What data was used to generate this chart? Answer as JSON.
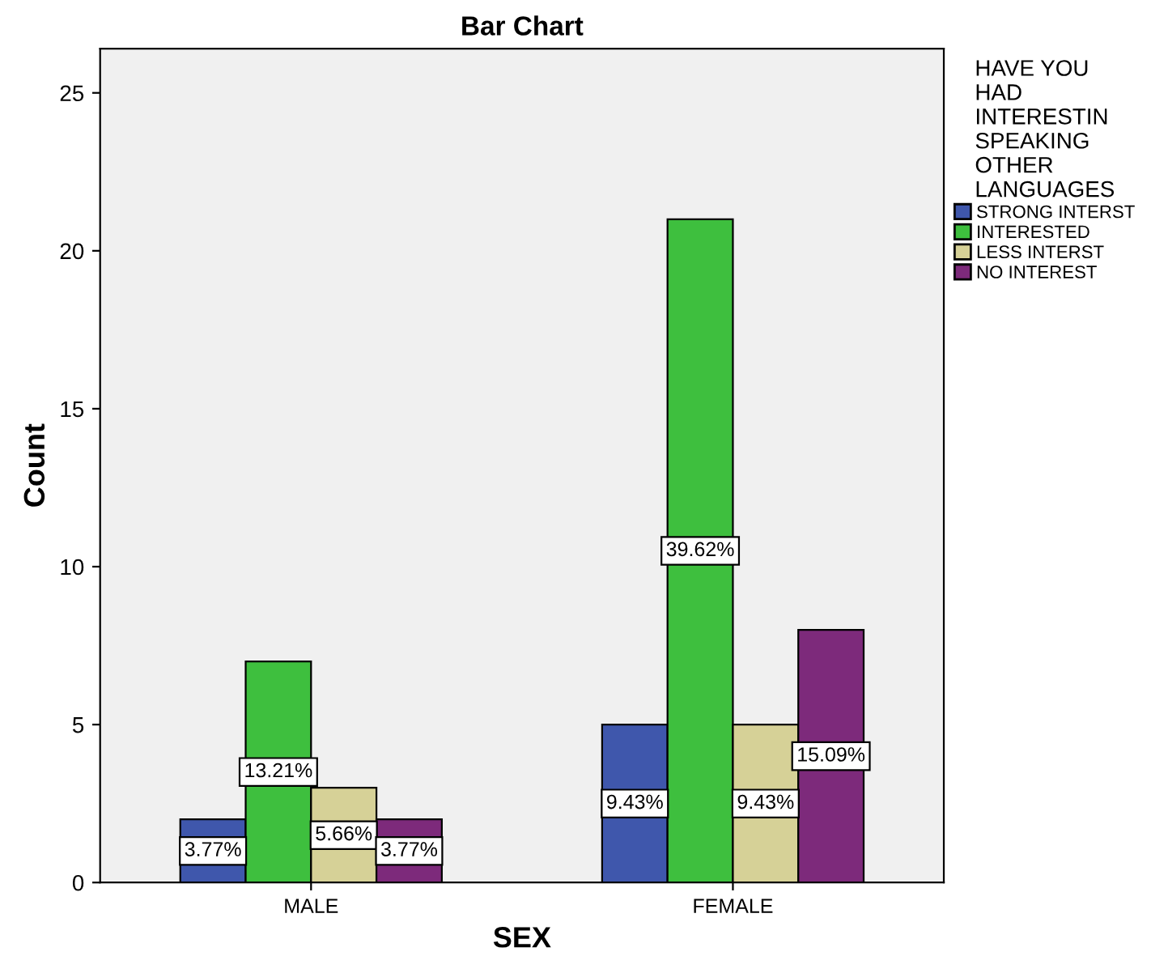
{
  "chart_data": {
    "type": "bar",
    "title": "Bar Chart",
    "xlabel": "SEX",
    "ylabel": "Count",
    "legend_title": "HAVE YOU HAD INTERESTIN SPEAKING OTHER LANGUAGES",
    "legend": "top right",
    "categories": [
      "MALE",
      "FEMALE"
    ],
    "ylim": [
      0,
      26.4
    ],
    "yticks": [
      0,
      5,
      10,
      15,
      20,
      25
    ],
    "grid": false,
    "annotations": [
      "3.77%",
      "9.43%",
      "13.21%",
      "39.62%",
      "5.66%",
      "9.43%",
      "3.77%",
      "15.09%"
    ],
    "series": [
      {
        "name": "STRONG INTERST",
        "color": "#3f57ac",
        "values": [
          2,
          5
        ]
      },
      {
        "name": "INTERESTED",
        "color": "#3ebf3e",
        "values": [
          7,
          21
        ]
      },
      {
        "name": "LESS INTERST",
        "color": "#d6d197",
        "values": [
          3,
          5
        ]
      },
      {
        "name": "NO INTEREST",
        "color": "#7d2a7b",
        "values": [
          2,
          8
        ]
      }
    ]
  }
}
